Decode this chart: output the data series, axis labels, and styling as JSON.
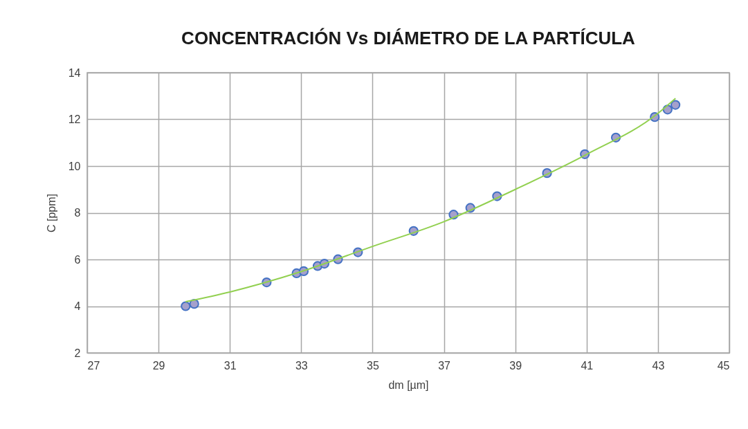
{
  "chart_data": {
    "type": "scatter",
    "title": "CONCENTRACIÓN Vs DIÁMETRO DE LA PARTÍCULA",
    "xlabel": "dm [µm]",
    "ylabel": "C [ppm]",
    "x": [
      29.76,
      30.0,
      32.03,
      32.87,
      33.07,
      33.46,
      33.65,
      34.03,
      34.59,
      36.15,
      37.27,
      37.74,
      38.49,
      39.89,
      40.95,
      41.82,
      42.91,
      43.27,
      43.49
    ],
    "series": [
      {
        "color": "#a5a0cc",
        "values": [
          4.0,
          4.1,
          5.02,
          5.41,
          5.5,
          5.72,
          5.82,
          6.01,
          6.31,
          7.22,
          7.92,
          8.21,
          8.71,
          9.7,
          10.51,
          11.22,
          12.1,
          12.42,
          12.62
        ]
      },
      {
        "type": "line",
        "marker": "none",
        "color": "#92d050",
        "x": [
          29.76,
          31,
          33,
          35,
          37,
          39,
          41,
          43,
          43.49
        ],
        "values": [
          4.19,
          4.61,
          5.48,
          6.56,
          7.62,
          9.0,
          10.5,
          12.26,
          12.9
        ]
      }
    ],
    "xlim": [
      27,
      45
    ],
    "xticks": [
      27,
      29,
      31,
      33,
      35,
      37,
      39,
      41,
      43,
      45
    ],
    "ylim": [
      2,
      14
    ],
    "yticks": [
      2,
      4,
      6,
      8,
      10,
      12,
      14
    ],
    "grid": true,
    "marker": "circle"
  }
}
